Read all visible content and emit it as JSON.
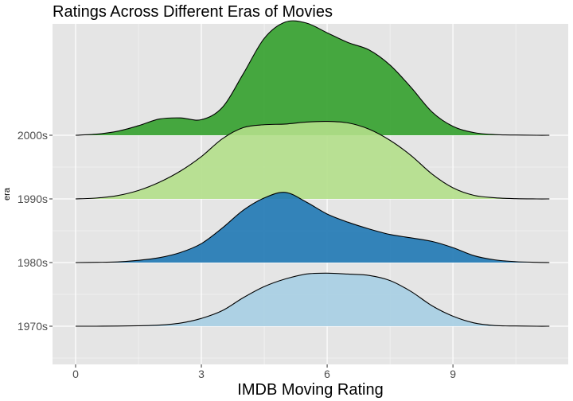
{
  "chart_data": {
    "type": "ridgeline",
    "title": "Ratings Across Different Eras of Movies",
    "xlabel": "IMDB Moving Rating",
    "ylabel": "era",
    "xlim": [
      -0.55,
      11.75
    ],
    "xticks": [
      0,
      3,
      6,
      9
    ],
    "grid": true,
    "colors": {
      "panel": "#e5e5e5",
      "grid_major": "#ffffff",
      "outline": "#000000",
      "tick_text": "#4d4d4d"
    },
    "series": [
      {
        "name": "1970s",
        "color": "#a6cee3",
        "x": [
          0,
          0.5,
          1,
          1.5,
          2,
          2.5,
          3,
          3.5,
          4,
          4.5,
          5,
          5.5,
          6,
          6.5,
          7,
          7.5,
          8,
          8.5,
          9,
          9.5,
          10,
          10.5,
          11,
          11.3
        ],
        "density": [
          0,
          0,
          0.005,
          0.02,
          0.05,
          0.14,
          0.35,
          0.7,
          1.28,
          1.78,
          2.12,
          2.34,
          2.38,
          2.34,
          2.28,
          2.05,
          1.56,
          0.92,
          0.45,
          0.15,
          0.03,
          0.01,
          0,
          0
        ]
      },
      {
        "name": "1980s",
        "color": "#1f78b4",
        "x": [
          0,
          0.5,
          1,
          1.5,
          2,
          2.5,
          3,
          3.5,
          4,
          4.5,
          5,
          5.5,
          6,
          6.5,
          7,
          7.5,
          8,
          8.5,
          9,
          9.5,
          10,
          10.5,
          11,
          11.3
        ],
        "density": [
          0,
          0.01,
          0.03,
          0.1,
          0.22,
          0.45,
          0.85,
          1.55,
          2.35,
          2.9,
          3.15,
          2.72,
          2.18,
          1.81,
          1.51,
          1.26,
          1.11,
          0.95,
          0.67,
          0.31,
          0.12,
          0.04,
          0.01,
          0
        ]
      },
      {
        "name": "1990s",
        "color": "#b2df8a",
        "x": [
          0,
          0.5,
          1,
          1.5,
          2,
          2.5,
          3,
          3.5,
          4,
          4.5,
          5,
          5.5,
          6,
          6.5,
          7,
          7.5,
          8,
          8.5,
          9,
          9.5,
          10,
          10.5,
          11,
          11.3
        ],
        "density": [
          0,
          0.04,
          0.15,
          0.38,
          0.75,
          1.25,
          1.9,
          2.7,
          3.2,
          3.33,
          3.36,
          3.45,
          3.48,
          3.41,
          3.13,
          2.63,
          1.95,
          1.12,
          0.5,
          0.16,
          0.05,
          0.01,
          0,
          0
        ]
      },
      {
        "name": "2000s",
        "color": "#33a02c",
        "x": [
          0,
          0.5,
          1,
          1.5,
          2,
          2.5,
          3,
          3.5,
          4,
          4.5,
          5,
          5.5,
          6,
          6.5,
          7,
          7.5,
          8,
          8.5,
          9,
          9.5,
          10,
          10.5,
          11,
          11.3
        ],
        "density": [
          0,
          0.05,
          0.18,
          0.43,
          0.73,
          0.78,
          0.7,
          1.25,
          2.76,
          4.35,
          5.08,
          5.04,
          4.6,
          4.16,
          3.83,
          3.15,
          2.15,
          1.05,
          0.4,
          0.12,
          0.03,
          0.01,
          0,
          0
        ]
      }
    ]
  }
}
